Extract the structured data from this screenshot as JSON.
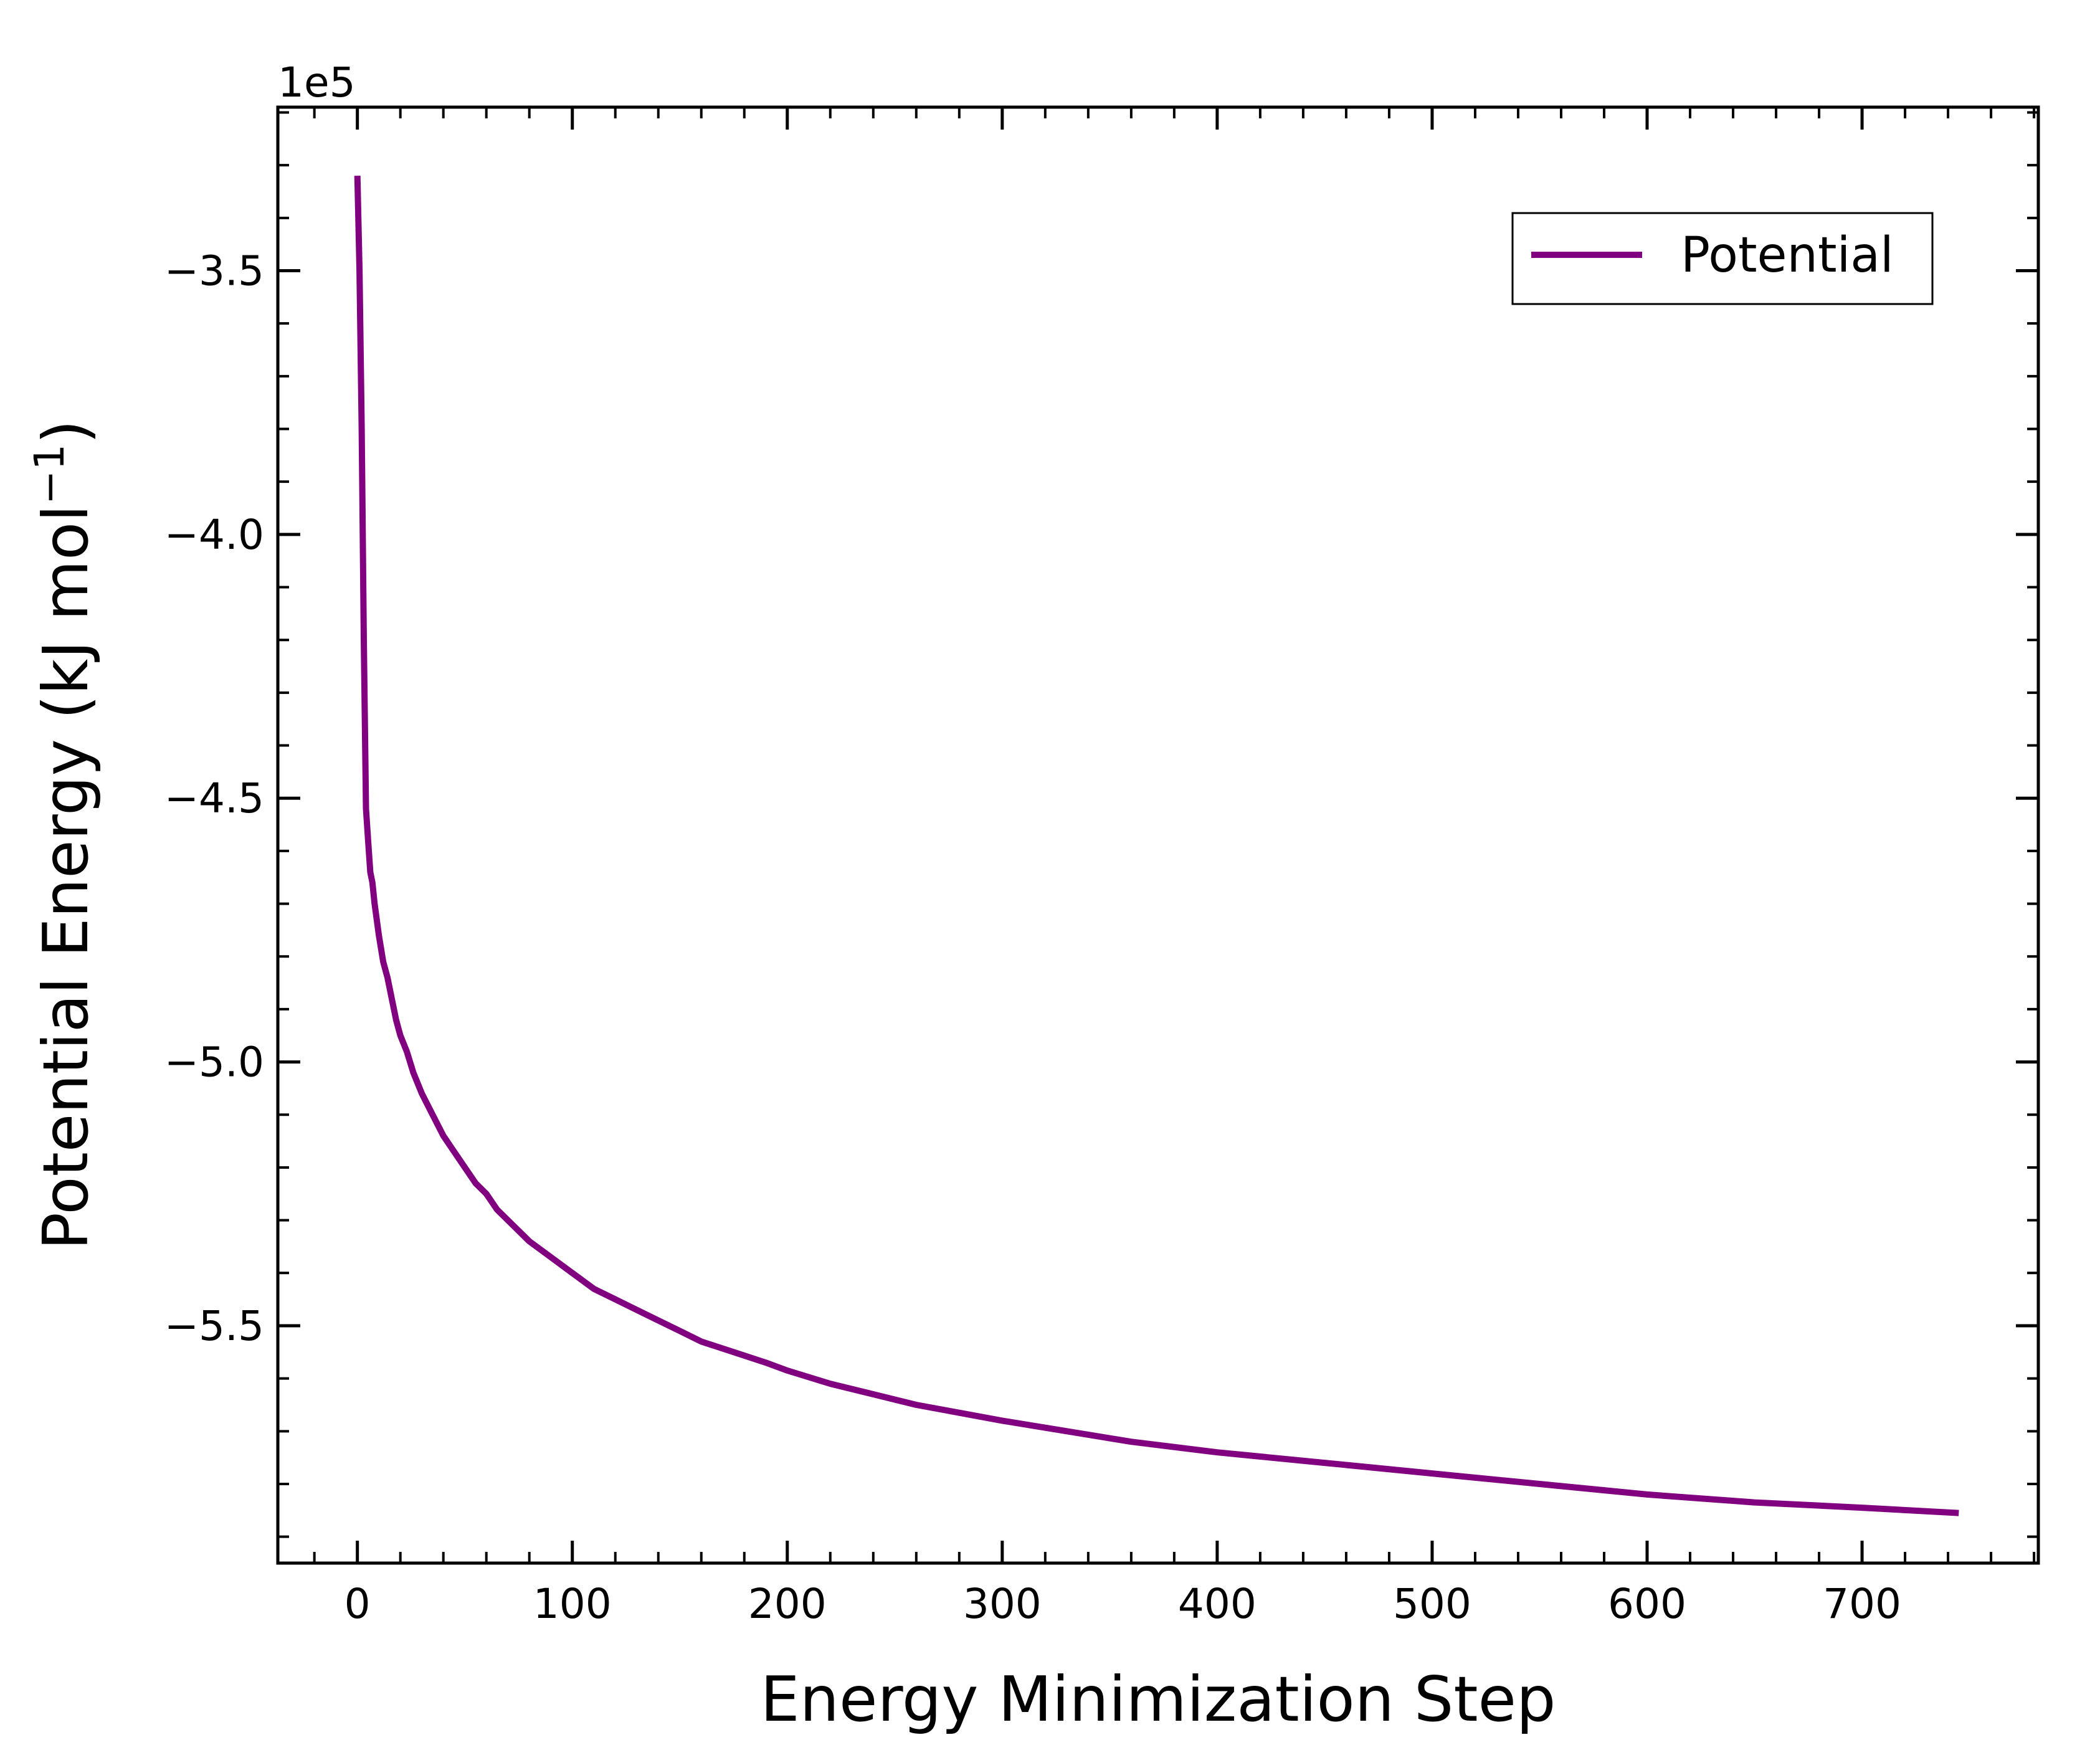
{
  "chart_data": {
    "type": "line",
    "title": "",
    "xlabel": "Energy Minimization Step",
    "ylabel": "Potential Energy (kJ mol",
    "ylabel_sup": "−1",
    "ylabel_close": ")",
    "offset_text": "1e5",
    "xlim": [
      -37,
      782
    ],
    "ylim": [
      -5.95,
      -3.19
    ],
    "x_ticks": [
      0,
      100,
      200,
      300,
      400,
      500,
      600,
      700
    ],
    "x_tick_labels": [
      "0",
      "100",
      "200",
      "300",
      "400",
      "500",
      "600",
      "700"
    ],
    "y_ticks": [
      -3.5,
      -4.0,
      -4.5,
      -5.0,
      -5.5
    ],
    "y_tick_labels": [
      "−3.5",
      "−4.0",
      "−4.5",
      "−5.0",
      "−5.5"
    ],
    "grid": false,
    "legend_position": "top-right",
    "series": [
      {
        "name": "Potential",
        "color": "#800080",
        "x": [
          0,
          1,
          2,
          3,
          4,
          5,
          6,
          7,
          8,
          10,
          12,
          14,
          16,
          18,
          20,
          23,
          26,
          30,
          35,
          40,
          45,
          50,
          55,
          60,
          65,
          70,
          75,
          80,
          90,
          100,
          110,
          120,
          130,
          140,
          150,
          160,
          175,
          190,
          200,
          220,
          240,
          260,
          280,
          300,
          330,
          360,
          400,
          450,
          500,
          550,
          600,
          650,
          700,
          745
        ],
        "y": [
          -3.32,
          -3.5,
          -3.8,
          -4.2,
          -4.52,
          -4.58,
          -4.64,
          -4.66,
          -4.7,
          -4.76,
          -4.81,
          -4.84,
          -4.88,
          -4.92,
          -4.95,
          -4.98,
          -5.02,
          -5.06,
          -5.1,
          -5.14,
          -5.17,
          -5.2,
          -5.23,
          -5.25,
          -5.28,
          -5.3,
          -5.32,
          -5.34,
          -5.37,
          -5.4,
          -5.43,
          -5.45,
          -5.47,
          -5.49,
          -5.51,
          -5.53,
          -5.55,
          -5.57,
          -5.585,
          -5.61,
          -5.63,
          -5.65,
          -5.665,
          -5.68,
          -5.7,
          -5.72,
          -5.74,
          -5.76,
          -5.78,
          -5.8,
          -5.82,
          -5.835,
          -5.845,
          -5.855
        ]
      }
    ]
  }
}
